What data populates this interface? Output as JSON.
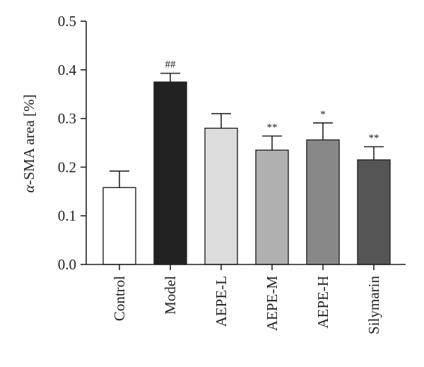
{
  "chart_data": {
    "type": "bar",
    "title": "",
    "xlabel": "",
    "ylabel_prefix": "α",
    "ylabel_rest": "-SMA area [%]",
    "ylim": [
      0,
      0.5
    ],
    "yticks": [
      "0.0",
      "0.1",
      "0.2",
      "0.3",
      "0.4",
      "0.5"
    ],
    "categories": [
      "Control",
      "Model",
      "AEPE-L",
      "AEPE-M",
      "AEPE-H",
      "Silymarin"
    ],
    "values": [
      0.158,
      0.375,
      0.28,
      0.235,
      0.256,
      0.215
    ],
    "errors": [
      0.034,
      0.018,
      0.03,
      0.029,
      0.035,
      0.027
    ],
    "annotations": [
      "",
      "##",
      "",
      "**",
      "*",
      "**"
    ],
    "colors": [
      "#ffffff",
      "#222222",
      "#dcdcdc",
      "#b0b0b0",
      "#888888",
      "#555555"
    ],
    "grid": false,
    "legend": "none"
  }
}
